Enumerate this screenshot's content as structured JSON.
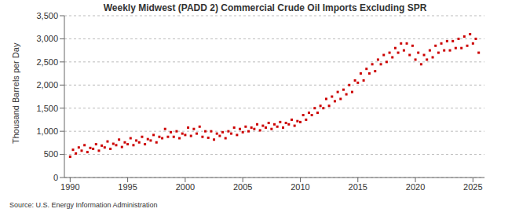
{
  "chart_data": {
    "type": "scatter",
    "title": "Weekly Midwest (PADD 2) Commercial Crude Oil Imports Excluding SPR",
    "y_label": "Thousand Barrels per Day",
    "source": "Source: U.S. Energy Information Administration",
    "color": "#cc0000",
    "marker": "square",
    "grid": true,
    "xlim": [
      1989.5,
      2026
    ],
    "xticks": [
      1990,
      1995,
      2000,
      2005,
      2010,
      2015,
      2020,
      2025
    ],
    "ylim": [
      0,
      3500
    ],
    "yticks": [
      0,
      500,
      {
        "value": 1000,
        "label": "1,000"
      },
      {
        "value": 1500,
        "label": "1,500"
      },
      {
        "value": 2000,
        "label": "2,000"
      },
      {
        "value": 2500,
        "label": "2,500"
      },
      {
        "value": 3000,
        "label": "3,000"
      },
      {
        "value": 3500,
        "label": "3,500"
      }
    ],
    "x": [
      1990,
      1990.25,
      1990.5,
      1990.75,
      1991,
      1991.25,
      1991.5,
      1991.75,
      1992,
      1992.25,
      1992.5,
      1992.75,
      1993,
      1993.25,
      1993.5,
      1993.75,
      1994,
      1994.25,
      1994.5,
      1994.75,
      1995,
      1995.25,
      1995.5,
      1995.75,
      1996,
      1996.25,
      1996.5,
      1996.75,
      1997,
      1997.25,
      1997.5,
      1997.75,
      1998,
      1998.25,
      1998.5,
      1998.75,
      1999,
      1999.25,
      1999.5,
      1999.75,
      2000,
      2000.25,
      2000.5,
      2000.75,
      2001,
      2001.25,
      2001.5,
      2001.75,
      2002,
      2002.25,
      2002.5,
      2002.75,
      2003,
      2003.25,
      2003.5,
      2003.75,
      2004,
      2004.25,
      2004.5,
      2004.75,
      2005,
      2005.25,
      2005.5,
      2005.75,
      2006,
      2006.25,
      2006.5,
      2006.75,
      2007,
      2007.25,
      2007.5,
      2007.75,
      2008,
      2008.25,
      2008.5,
      2008.75,
      2009,
      2009.25,
      2009.5,
      2009.75,
      2010,
      2010.25,
      2010.5,
      2010.75,
      2011,
      2011.25,
      2011.5,
      2011.75,
      2012,
      2012.25,
      2012.5,
      2012.75,
      2013,
      2013.25,
      2013.5,
      2013.75,
      2014,
      2014.25,
      2014.5,
      2014.75,
      2015,
      2015.25,
      2015.5,
      2015.75,
      2016,
      2016.25,
      2016.5,
      2016.75,
      2017,
      2017.25,
      2017.5,
      2017.75,
      2018,
      2018.25,
      2018.5,
      2018.75,
      2019,
      2019.25,
      2019.5,
      2019.75,
      2020,
      2020.25,
      2020.5,
      2020.75,
      2021,
      2021.25,
      2021.5,
      2021.75,
      2022,
      2022.25,
      2022.5,
      2022.75,
      2023,
      2023.25,
      2023.5,
      2023.75,
      2024,
      2024.25,
      2024.5,
      2024.75,
      2025,
      2025.25,
      2025.5
    ],
    "values": [
      450,
      600,
      520,
      650,
      580,
      700,
      550,
      640,
      620,
      720,
      580,
      690,
      650,
      780,
      620,
      730,
      700,
      820,
      660,
      760,
      720,
      850,
      700,
      800,
      760,
      880,
      720,
      830,
      800,
      920,
      760,
      880,
      850,
      1050,
      880,
      980,
      880,
      1000,
      850,
      950,
      920,
      1080,
      900,
      1050,
      950,
      1100,
      880,
      1000,
      860,
      1000,
      820,
      950,
      900,
      980,
      850,
      1000,
      950,
      1080,
      920,
      1050,
      980,
      1100,
      1000,
      1080,
      1050,
      1150,
      1020,
      1120,
      1080,
      1180,
      1050,
      1150,
      1100,
      1200,
      1080,
      1180,
      1150,
      1250,
      1120,
      1220,
      1200,
      1350,
      1250,
      1400,
      1350,
      1500,
      1400,
      1550,
      1500,
      1700,
      1550,
      1750,
      1650,
      1850,
      1700,
      1900,
      1800,
      2000,
      1850,
      2100,
      2050,
      2250,
      2100,
      2350,
      2250,
      2450,
      2300,
      2550,
      2450,
      2650,
      2500,
      2700,
      2600,
      2800,
      2700,
      2900,
      2750,
      2900,
      2650,
      2850,
      2550,
      2700,
      2450,
      2650,
      2550,
      2750,
      2600,
      2850,
      2700,
      2900,
      2750,
      2950,
      2750,
      2950,
      2800,
      3000,
      2800,
      3050,
      2850,
      3100,
      2900,
      3000,
      2700
    ]
  }
}
